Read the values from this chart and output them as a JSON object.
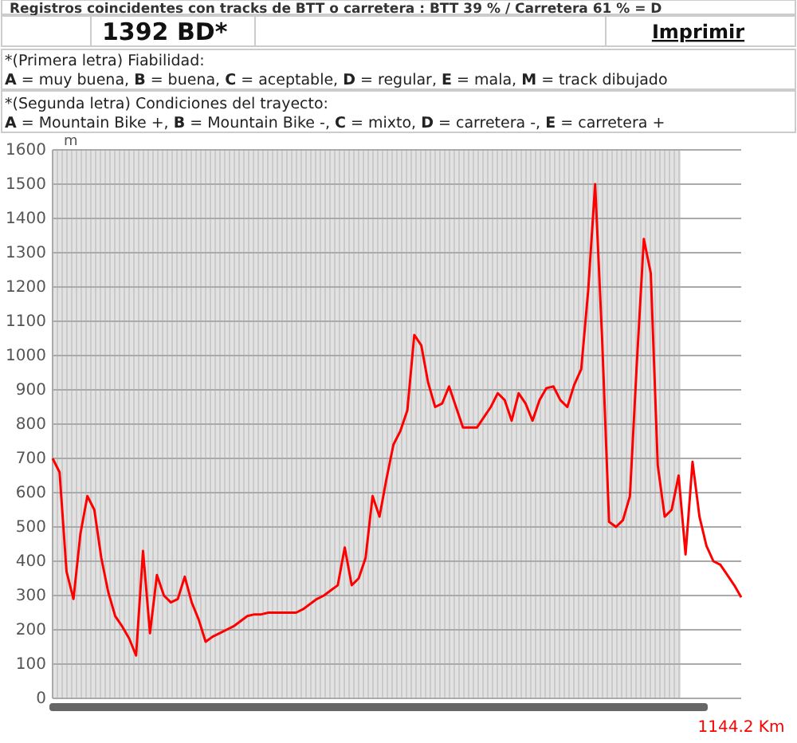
{
  "chart_data": {
    "type": "line",
    "ylabel": "m",
    "annotations": [
      "Registros coincidentes con tracks de BTT o carretera : BTT 39 % / Carretera 61 % = D",
      "1392 BD*",
      "Imprimir",
      "*(Primera letra) Fiabilidad:",
      "A = muy buena, B = buena, C = aceptable, D = regular, E = mala, M = track dibujado",
      "*(Segunda letra) Condiciones del trayecto:",
      "A = Mountain Bike +, B = Mountain Bike -, C = mixto, D = carretera -, E = carretera +",
      "1144.2 Km"
    ],
    "categories": [
      null,
      null,
      null,
      null,
      null,
      null,
      null,
      null,
      null,
      null,
      null,
      null,
      null,
      null,
      null,
      null,
      null,
      null,
      null,
      null,
      null,
      null,
      null,
      null,
      null,
      null,
      null,
      null,
      null,
      null,
      null,
      null,
      null,
      null,
      null,
      null,
      null,
      null,
      null,
      null,
      null,
      null,
      null,
      null,
      null,
      null,
      null,
      null,
      null,
      null,
      null,
      null,
      null,
      null,
      null,
      null,
      null,
      null,
      null,
      null,
      null,
      null,
      null,
      null,
      null,
      null,
      null,
      null,
      null,
      null,
      null,
      null,
      null,
      null,
      null,
      null,
      null,
      null,
      null,
      null,
      null,
      null,
      null,
      null,
      null,
      null,
      null,
      null,
      null,
      null,
      null,
      null,
      null,
      null,
      null,
      null,
      null,
      null,
      null,
      null
    ],
    "series": [
      {
        "color": "#ff0000",
        "values": [
          700,
          660,
          370,
          290,
          480,
          590,
          550,
          410,
          310,
          240,
          210,
          175,
          125,
          430,
          190,
          360,
          300,
          280,
          290,
          355,
          280,
          230,
          165,
          180,
          190,
          200,
          210,
          225,
          240,
          245,
          245,
          250,
          250,
          250,
          250,
          250,
          260,
          275,
          290,
          300,
          315,
          330,
          440,
          330,
          350,
          410,
          590,
          530,
          640,
          740,
          780,
          840,
          1060,
          1030,
          920,
          850,
          860,
          910,
          850,
          790,
          790,
          790,
          820,
          850,
          890,
          870,
          810,
          890,
          860,
          810,
          870,
          905,
          910,
          870,
          850,
          915,
          960,
          1190,
          1500,
          1050,
          515,
          500,
          520,
          590,
          980,
          1340,
          1240,
          680,
          530,
          550,
          650,
          420,
          690,
          530,
          445,
          400,
          390,
          360,
          330,
          295
        ]
      }
    ],
    "ylim": [
      0,
      1600
    ],
    "yticks": [
      0,
      100,
      200,
      300,
      400,
      500,
      600,
      700,
      800,
      900,
      1000,
      1100,
      1200,
      1300,
      1400,
      1500,
      1600
    ],
    "grid": true,
    "marker": "none",
    "line_style": "solid",
    "tick_labels": "y"
  }
}
